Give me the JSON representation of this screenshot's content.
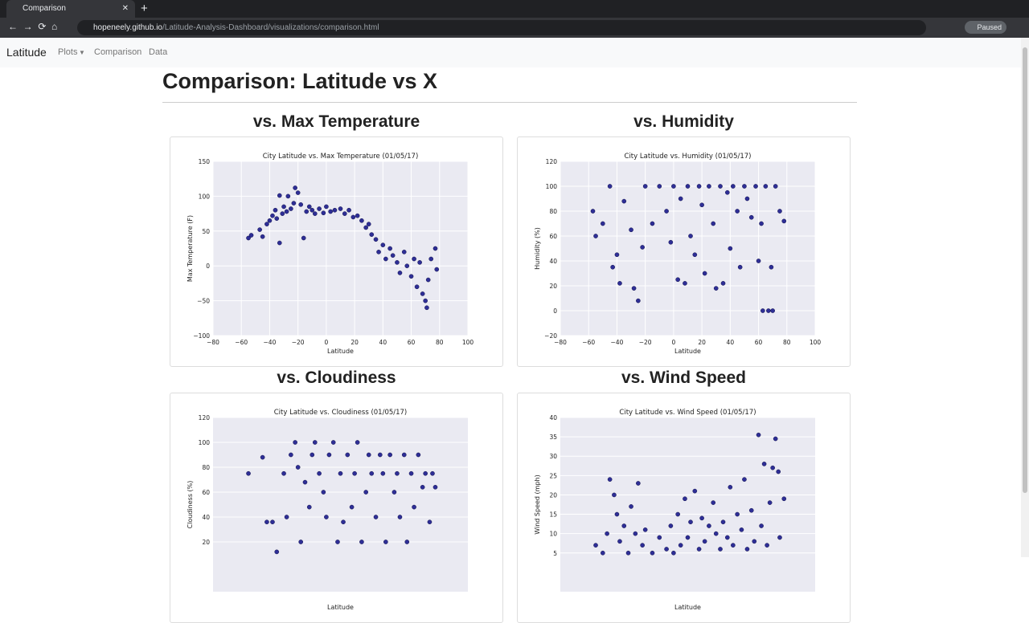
{
  "browser": {
    "tab_title": "Comparison",
    "url_host": "hopeneely.github.io",
    "url_path": "/Latitude-Analysis-Dashboard/visualizations/comparison.html",
    "profile_status": "Paused"
  },
  "navbar": {
    "brand": "Latitude",
    "links": [
      "Plots",
      "Comparison",
      "Data"
    ]
  },
  "heading": "Comparison: Latitude vs X",
  "panels": [
    {
      "heading": "vs. Max Temperature"
    },
    {
      "heading": "vs. Humidity"
    },
    {
      "heading": "vs. Cloudiness"
    },
    {
      "heading": "vs. Wind Speed"
    }
  ],
  "chart_data": [
    {
      "type": "scatter",
      "title": "City Latitude vs. Max Temperature (01/05/17)",
      "x_label": "Latitude",
      "y_label": "Max Temperature (F)",
      "color": "#1a1a8c",
      "grid": true,
      "xlim": [
        -80,
        100
      ],
      "xticks": [
        {
          "value": -80,
          "label": "−80"
        },
        {
          "value": -60,
          "label": "−60"
        },
        {
          "value": -40,
          "label": "−40"
        },
        {
          "value": -20,
          "label": "−20"
        },
        0,
        20,
        40,
        60,
        80,
        100
      ],
      "ylim": [
        -100,
        150
      ],
      "yticks": [
        {
          "value": -100,
          "label": "−100"
        },
        {
          "value": -50,
          "label": "−50"
        },
        0,
        50,
        100,
        150
      ],
      "x": [
        -55,
        -53,
        -47,
        -45,
        -42,
        -40,
        -38,
        -36,
        -35,
        -33,
        -31,
        -30,
        -28,
        -27,
        -25,
        -23,
        -22,
        -20,
        -18,
        -16,
        -14,
        -12,
        -10,
        -8,
        -5,
        -2,
        0,
        3,
        6,
        10,
        13,
        16,
        19,
        22,
        25,
        28,
        30,
        32,
        35,
        37,
        40,
        42,
        45,
        47,
        50,
        52,
        55,
        57,
        60,
        62,
        64,
        66,
        68,
        70,
        71,
        72,
        74,
        77,
        78,
        -33
      ],
      "values": [
        40,
        44,
        52,
        42,
        60,
        65,
        72,
        80,
        68,
        101,
        75,
        85,
        78,
        100,
        82,
        90,
        112,
        105,
        88,
        40,
        78,
        85,
        80,
        75,
        82,
        76,
        85,
        78,
        80,
        82,
        75,
        80,
        70,
        72,
        65,
        55,
        60,
        45,
        38,
        20,
        30,
        10,
        25,
        15,
        5,
        -10,
        20,
        0,
        -15,
        10,
        -30,
        5,
        -40,
        -50,
        -60,
        -20,
        10,
        25,
        -5,
        33
      ]
    },
    {
      "type": "scatter",
      "title": "City Latitude vs. Humidity (01/05/17)",
      "x_label": "Latitude",
      "y_label": "Humidity (%)",
      "color": "#1a1a8c",
      "grid": true,
      "xlim": [
        -80,
        100
      ],
      "xticks": [
        {
          "value": -80,
          "label": "−80"
        },
        {
          "value": -60,
          "label": "−60"
        },
        {
          "value": -40,
          "label": "−40"
        },
        {
          "value": -20,
          "label": "−20"
        },
        0,
        20,
        40,
        60,
        80,
        100
      ],
      "ylim": [
        -20,
        120
      ],
      "yticks": [
        {
          "value": -20,
          "label": "−20"
        },
        0,
        20,
        40,
        60,
        80,
        100,
        120
      ],
      "x": [
        -57,
        -55,
        -50,
        -45,
        -43,
        -40,
        -38,
        -35,
        -30,
        -28,
        -25,
        -22,
        -20,
        -15,
        -10,
        -5,
        -2,
        0,
        3,
        5,
        8,
        10,
        12,
        15,
        18,
        20,
        22,
        25,
        28,
        30,
        33,
        35,
        38,
        40,
        42,
        45,
        47,
        50,
        52,
        55,
        58,
        60,
        62,
        63,
        65,
        67,
        69,
        70,
        72,
        75,
        78
      ],
      "values": [
        80,
        60,
        70,
        100,
        35,
        45,
        22,
        88,
        65,
        18,
        8,
        51,
        100,
        70,
        100,
        80,
        55,
        100,
        25,
        90,
        22,
        100,
        60,
        45,
        100,
        85,
        30,
        100,
        70,
        18,
        100,
        22,
        95,
        50,
        100,
        80,
        35,
        100,
        90,
        75,
        100,
        40,
        70,
        0,
        100,
        0,
        35,
        0,
        100,
        80,
        72
      ]
    },
    {
      "type": "scatter",
      "title": "City Latitude vs. Cloudiness (01/05/17)",
      "x_label": "Latitude",
      "y_label": "Cloudiness (%)",
      "color": "#1a1a8c",
      "grid": true,
      "xlim": [
        -80,
        100
      ],
      "ylim": [
        -20,
        120
      ],
      "yticks": [
        20,
        40,
        60,
        80,
        100,
        120
      ],
      "x": [
        -55,
        -45,
        -42,
        -38,
        -35,
        -30,
        -28,
        -25,
        -22,
        -20,
        -18,
        -15,
        -12,
        -10,
        -8,
        -5,
        -2,
        0,
        2,
        5,
        8,
        10,
        12,
        15,
        18,
        20,
        22,
        25,
        28,
        30,
        32,
        35,
        38,
        40,
        42,
        45,
        48,
        50,
        52,
        55,
        57,
        60,
        62,
        65,
        68,
        70,
        73,
        75,
        77
      ],
      "values": [
        75,
        88,
        36,
        36,
        12,
        75,
        40,
        90,
        100,
        80,
        20,
        68,
        48,
        90,
        100,
        75,
        60,
        40,
        90,
        100,
        20,
        75,
        36,
        90,
        48,
        75,
        100,
        20,
        60,
        90,
        75,
        40,
        90,
        75,
        20,
        90,
        60,
        75,
        40,
        90,
        20,
        75,
        48,
        90,
        64,
        75,
        36,
        75,
        64
      ]
    },
    {
      "type": "scatter",
      "title": "City Latitude vs. Wind Speed (01/05/17)",
      "x_label": "Latitude",
      "y_label": "Wind Speed (mph)",
      "color": "#1a1a8c",
      "grid": true,
      "xlim": [
        -80,
        100
      ],
      "ylim": [
        -5,
        40
      ],
      "yticks": [
        5,
        10,
        15,
        20,
        25,
        30,
        35,
        40
      ],
      "x": [
        -55,
        -50,
        -47,
        -45,
        -42,
        -40,
        -38,
        -35,
        -32,
        -30,
        -27,
        -25,
        -22,
        -20,
        -15,
        -10,
        -5,
        -2,
        0,
        3,
        5,
        8,
        10,
        12,
        15,
        18,
        20,
        22,
        25,
        28,
        30,
        33,
        35,
        38,
        40,
        42,
        45,
        48,
        50,
        52,
        55,
        57,
        60,
        62,
        64,
        66,
        68,
        70,
        72,
        74,
        75,
        78
      ],
      "values": [
        7,
        5,
        10,
        24,
        20,
        15,
        8,
        12,
        5,
        17,
        10,
        23,
        7,
        11,
        5,
        9,
        6,
        12,
        5,
        15,
        7,
        19,
        9,
        13,
        21,
        6,
        14,
        8,
        12,
        18,
        10,
        6,
        13,
        9,
        22,
        7,
        15,
        11,
        24,
        6,
        16,
        8,
        35.5,
        12,
        28,
        7,
        18,
        27,
        34.5,
        26,
        9,
        19
      ]
    }
  ]
}
